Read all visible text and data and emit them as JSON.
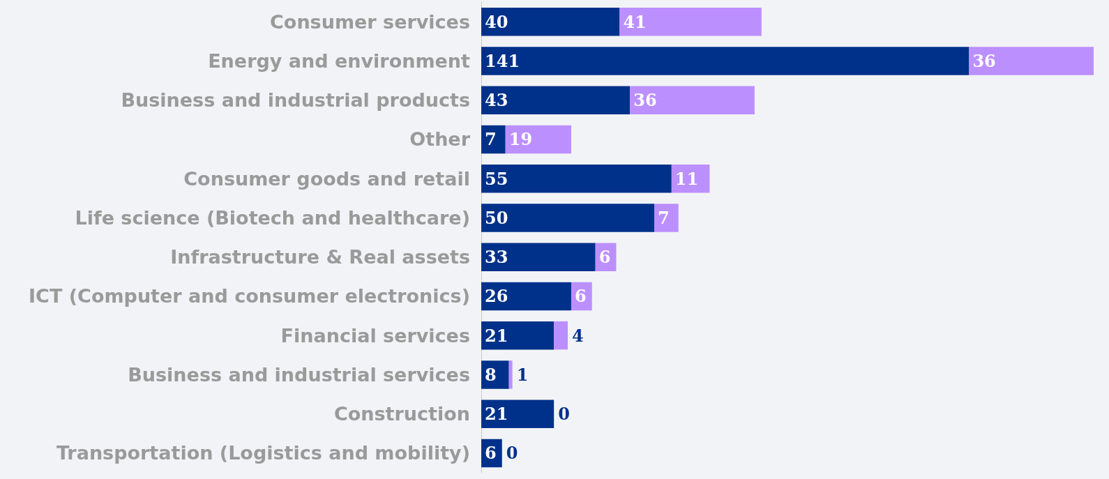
{
  "chart_data": {
    "type": "bar",
    "orientation": "horizontal",
    "stacked": true,
    "data_labels": true,
    "categories": [
      "Consumer services",
      "Energy and environment",
      "Business and industrial products",
      "Other",
      "Consumer goods and retail",
      "Life science (Biotech and healthcare)",
      "Infrastructure & Real assets",
      "ICT (Computer and consumer electronics)",
      "Financial services",
      "Business and industrial services",
      "Construction",
      "Transportation (Logistics and mobility)"
    ],
    "series": [
      {
        "color": "#00318a",
        "values": [
          40,
          141,
          43,
          7,
          55,
          50,
          33,
          26,
          21,
          8,
          21,
          6
        ]
      },
      {
        "color": "#bc8fff",
        "values": [
          41,
          36,
          36,
          19,
          11,
          7,
          6,
          6,
          4,
          1,
          0,
          0
        ]
      }
    ]
  }
}
